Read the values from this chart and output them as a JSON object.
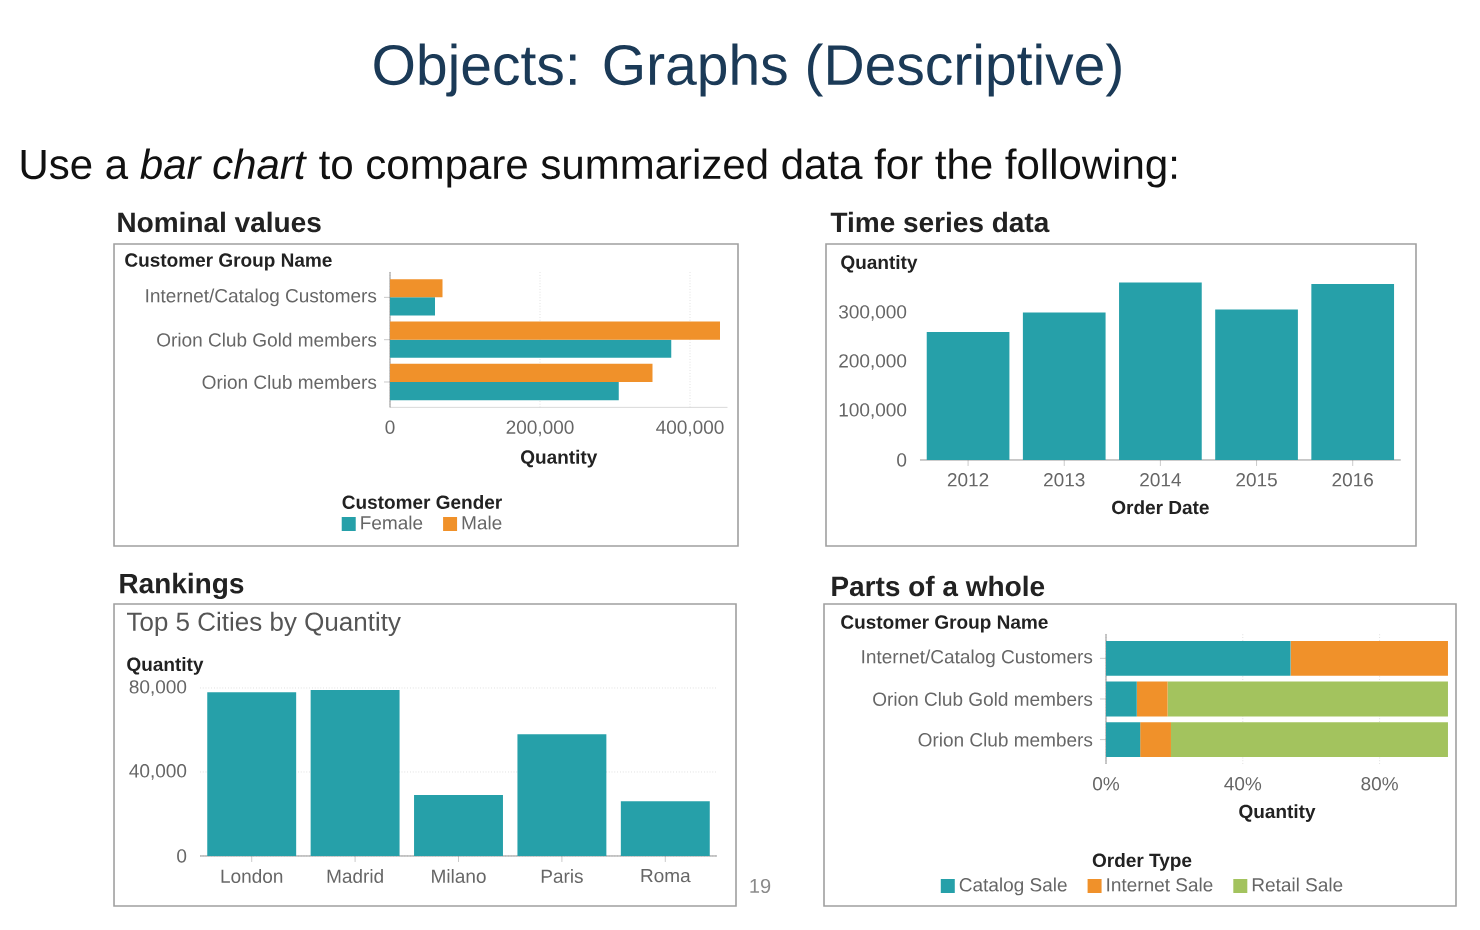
{
  "chart_data": [
    {
      "type": "bar",
      "orientation": "horizontal",
      "title": "Nominal values",
      "annotations": [
        "Objects: Graphs (Descriptive)",
        "Use a *bar chart* to compare summarized data for the following:"
      ],
      "ylabel": "Customer Group Name",
      "xlabel": "Quantity",
      "legend_title": "Customer Gender",
      "categories": [
        "Internet/Catalog Customers",
        "Orion Club Gold members",
        "Orion Club members"
      ],
      "series": [
        {
          "name": "Female",
          "color": "#26a0a9",
          "values": [
            60000,
            375000,
            305000
          ]
        },
        {
          "name": "Male",
          "color": "#f0912a",
          "values": [
            70000,
            440000,
            350000
          ]
        }
      ],
      "xlim": [
        0,
        450000
      ],
      "xticks": [
        0,
        {
          "value": 200000,
          "label": "200,000"
        },
        {
          "value": 400000,
          "label": "400,000"
        }
      ],
      "grid": "x",
      "legend": "bottom"
    },
    {
      "type": "bar",
      "title": "Time series data",
      "ylabel": "Quantity",
      "xlabel": "Order Date",
      "categories": [
        "2012",
        "2013",
        "2014",
        "2015",
        "2016"
      ],
      "values": [
        261000,
        301000,
        362000,
        307000,
        359000
      ],
      "color": "#26a0a9",
      "ylim": [
        0,
        380000
      ],
      "yticks": [
        0,
        {
          "value": 100000,
          "label": "100,000"
        },
        {
          "value": 200000,
          "label": "200,000"
        },
        {
          "value": 300000,
          "label": "300,000"
        }
      ]
    },
    {
      "type": "bar",
      "title": "Rankings",
      "subtitle": "Top 5 Cities by Quantity",
      "ylabel": "Quantity",
      "annotations": [
        "19"
      ],
      "categories": [
        "London",
        "Madrid",
        "Milano",
        "Paris",
        "Roma"
      ],
      "values": [
        78000,
        79000,
        29000,
        58000,
        26000
      ],
      "color": "#26a0a9",
      "ylim": [
        0,
        80000
      ],
      "yticks": [
        0,
        {
          "value": 40000,
          "label": "40,000"
        },
        {
          "value": 80000,
          "label": "80,000"
        }
      ],
      "grid": "y"
    },
    {
      "type": "bar",
      "orientation": "horizontal",
      "stacked": true,
      "title": "Parts of a whole",
      "ylabel": "Customer Group Name",
      "xlabel": "Quantity",
      "legend_title": "Order Type",
      "categories": [
        "Internet/Catalog Customers",
        "Orion Club Gold members",
        "Orion Club members"
      ],
      "series": [
        {
          "name": "Catalog Sale",
          "color": "#26a0a9",
          "values": [
            54,
            9,
            10
          ]
        },
        {
          "name": "Internet Sale",
          "color": "#f0912a",
          "values": [
            46,
            9,
            9
          ]
        },
        {
          "name": "Retail Sale",
          "color": "#a3c35e",
          "values": [
            0,
            82,
            81
          ]
        }
      ],
      "xlim": [
        0,
        100
      ],
      "xticks": [
        {
          "value": 0,
          "label": "0%"
        },
        {
          "value": 40,
          "label": "40%"
        },
        {
          "value": 80,
          "label": "80%"
        }
      ],
      "grid": "x",
      "legend": "bottom"
    }
  ]
}
